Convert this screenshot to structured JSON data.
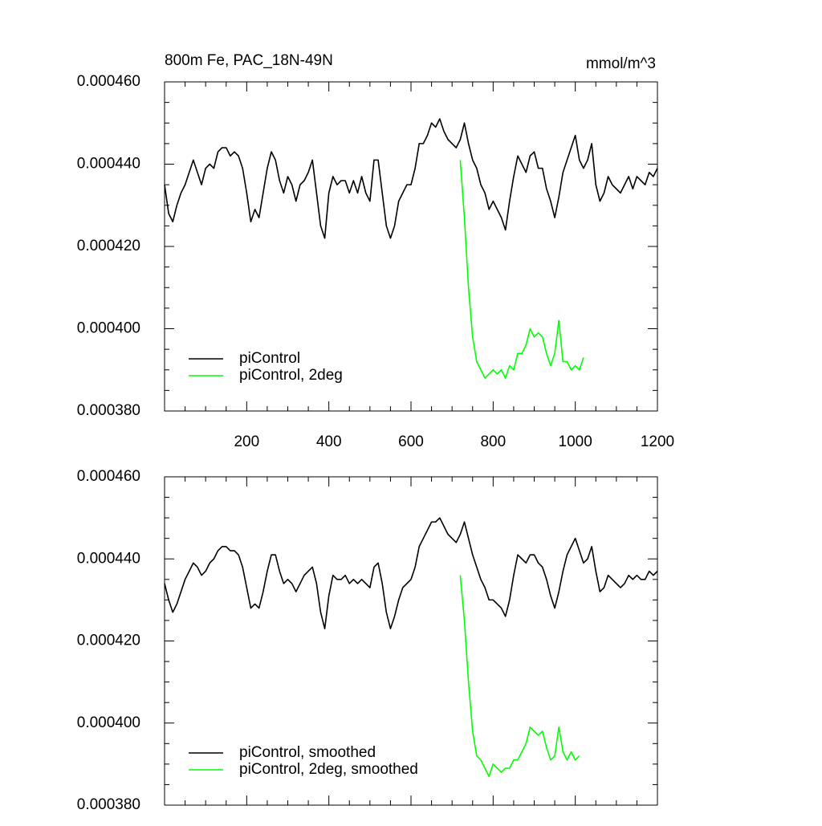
{
  "chart_data": [
    {
      "type": "line",
      "title": "800m Fe, PAC_18N-49N",
      "units": "mmol/m^3",
      "xlim": [
        0,
        1200
      ],
      "xticks": [
        200,
        400,
        600,
        800,
        1000,
        1200
      ],
      "xticklabels": true,
      "ylim": [
        0.00038,
        0.00046
      ],
      "yticks": [
        {
          "value": 0.00038,
          "label": "0.000380"
        },
        {
          "value": 0.0004,
          "label": "0.000400"
        },
        {
          "value": 0.00042,
          "label": "0.000420"
        },
        {
          "value": 0.00044,
          "label": "0.000440"
        },
        {
          "value": 0.00046,
          "label": "0.000460"
        }
      ],
      "minor_per_major": 4,
      "legend": "lower-left",
      "series": [
        {
          "name": "piControl",
          "color": "#000000",
          "x": [
            0,
            10,
            20,
            30,
            40,
            50,
            60,
            70,
            80,
            90,
            100,
            110,
            120,
            130,
            140,
            150,
            160,
            170,
            180,
            190,
            200,
            210,
            220,
            230,
            240,
            250,
            260,
            270,
            280,
            290,
            300,
            310,
            320,
            330,
            340,
            350,
            360,
            370,
            380,
            390,
            400,
            410,
            420,
            430,
            440,
            450,
            460,
            470,
            480,
            490,
            500,
            510,
            520,
            530,
            540,
            550,
            560,
            570,
            580,
            590,
            600,
            610,
            620,
            630,
            640,
            650,
            660,
            670,
            680,
            690,
            700,
            710,
            720,
            730,
            740,
            750,
            760,
            770,
            780,
            790,
            800,
            810,
            820,
            830,
            840,
            850,
            860,
            870,
            880,
            890,
            900,
            910,
            920,
            930,
            940,
            950,
            960,
            970,
            980,
            990,
            1000,
            1010,
            1020,
            1030,
            1040,
            1050,
            1060,
            1070,
            1080,
            1090,
            1100,
            1110,
            1120,
            1130,
            1140,
            1150,
            1160,
            1170,
            1180,
            1190,
            1200
          ],
          "values": [
            0.000435,
            0.000428,
            0.000426,
            0.00043,
            0.000433,
            0.000435,
            0.000438,
            0.000441,
            0.000438,
            0.000435,
            0.000439,
            0.00044,
            0.000439,
            0.000443,
            0.000444,
            0.000444,
            0.000442,
            0.000443,
            0.000442,
            0.000439,
            0.000433,
            0.000426,
            0.000429,
            0.000427,
            0.000433,
            0.000439,
            0.000443,
            0.000441,
            0.000436,
            0.000433,
            0.000437,
            0.000435,
            0.000431,
            0.000435,
            0.000436,
            0.000438,
            0.000441,
            0.000433,
            0.000425,
            0.000422,
            0.000433,
            0.000437,
            0.000435,
            0.000436,
            0.000436,
            0.000433,
            0.000436,
            0.000433,
            0.000437,
            0.000433,
            0.000431,
            0.000441,
            0.000441,
            0.000433,
            0.000425,
            0.000422,
            0.000425,
            0.000431,
            0.000433,
            0.000435,
            0.000435,
            0.000439,
            0.000445,
            0.000445,
            0.000447,
            0.00045,
            0.000449,
            0.000451,
            0.000448,
            0.000446,
            0.000445,
            0.000444,
            0.000446,
            0.00045,
            0.000445,
            0.000441,
            0.000439,
            0.000435,
            0.000433,
            0.000429,
            0.000431,
            0.000429,
            0.000427,
            0.000424,
            0.000431,
            0.000437,
            0.000442,
            0.00044,
            0.000438,
            0.000442,
            0.000443,
            0.000439,
            0.000439,
            0.000434,
            0.000431,
            0.000427,
            0.000432,
            0.000438,
            0.000441,
            0.000444,
            0.000447,
            0.000441,
            0.000439,
            0.000441,
            0.000445,
            0.000435,
            0.000431,
            0.000433,
            0.000437,
            0.000435,
            0.000434,
            0.000433,
            0.000435,
            0.000437,
            0.000434,
            0.000437,
            0.000436,
            0.000435,
            0.000438,
            0.000437,
            0.000439
          ]
        },
        {
          "name": "piControl, 2deg",
          "color": "#00ff00",
          "x": [
            720,
            730,
            740,
            750,
            760,
            770,
            780,
            790,
            800,
            810,
            820,
            830,
            840,
            850,
            860,
            870,
            880,
            890,
            900,
            910,
            920,
            930,
            940,
            950,
            960,
            970,
            980,
            990,
            1000,
            1010,
            1020
          ],
          "values": [
            0.000441,
            0.000427,
            0.00041,
            0.000398,
            0.000392,
            0.00039,
            0.000388,
            0.000389,
            0.00039,
            0.000389,
            0.00039,
            0.000388,
            0.000391,
            0.00039,
            0.000394,
            0.000394,
            0.000396,
            0.0004,
            0.000398,
            0.000399,
            0.000398,
            0.000394,
            0.000391,
            0.000394,
            0.000402,
            0.000392,
            0.000392,
            0.00039,
            0.000391,
            0.00039,
            0.000393
          ]
        }
      ]
    },
    {
      "type": "line",
      "xlim": [
        0,
        1200
      ],
      "xticks": [
        200,
        400,
        600,
        800,
        1000,
        1200
      ],
      "xticklabels": false,
      "ylim": [
        0.00038,
        0.00046
      ],
      "yticks": [
        {
          "value": 0.00038,
          "label": "0.000380"
        },
        {
          "value": 0.0004,
          "label": "0.000400"
        },
        {
          "value": 0.00042,
          "label": "0.000420"
        },
        {
          "value": 0.00044,
          "label": "0.000440"
        },
        {
          "value": 0.00046,
          "label": "0.000460"
        }
      ],
      "minor_per_major": 4,
      "legend": "lower-left",
      "series": [
        {
          "name": "piControl, smoothed",
          "color": "#000000",
          "x": [
            0,
            10,
            20,
            30,
            40,
            50,
            60,
            70,
            80,
            90,
            100,
            110,
            120,
            130,
            140,
            150,
            160,
            170,
            180,
            190,
            200,
            210,
            220,
            230,
            240,
            250,
            260,
            270,
            280,
            290,
            300,
            310,
            320,
            330,
            340,
            350,
            360,
            370,
            380,
            390,
            400,
            410,
            420,
            430,
            440,
            450,
            460,
            470,
            480,
            490,
            500,
            510,
            520,
            530,
            540,
            550,
            560,
            570,
            580,
            590,
            600,
            610,
            620,
            630,
            640,
            650,
            660,
            670,
            680,
            690,
            700,
            710,
            720,
            730,
            740,
            750,
            760,
            770,
            780,
            790,
            800,
            810,
            820,
            830,
            840,
            850,
            860,
            870,
            880,
            890,
            900,
            910,
            920,
            930,
            940,
            950,
            960,
            970,
            980,
            990,
            1000,
            1010,
            1020,
            1030,
            1040,
            1050,
            1060,
            1070,
            1080,
            1090,
            1100,
            1110,
            1120,
            1130,
            1140,
            1150,
            1160,
            1170,
            1180,
            1190,
            1200
          ],
          "values": [
            0.000434,
            0.00043,
            0.000427,
            0.000429,
            0.000432,
            0.000435,
            0.000437,
            0.000439,
            0.000438,
            0.000436,
            0.000437,
            0.000439,
            0.00044,
            0.000442,
            0.000443,
            0.000443,
            0.000442,
            0.000442,
            0.000441,
            0.000438,
            0.000433,
            0.000428,
            0.000429,
            0.000428,
            0.000432,
            0.000437,
            0.000441,
            0.000441,
            0.000437,
            0.000434,
            0.000435,
            0.000434,
            0.000432,
            0.000434,
            0.000436,
            0.000437,
            0.000438,
            0.000434,
            0.000427,
            0.000423,
            0.000431,
            0.000436,
            0.000435,
            0.000435,
            0.000436,
            0.000434,
            0.000435,
            0.000434,
            0.000435,
            0.000434,
            0.000433,
            0.000438,
            0.000439,
            0.000434,
            0.000427,
            0.000423,
            0.000426,
            0.00043,
            0.000433,
            0.000434,
            0.000435,
            0.000438,
            0.000443,
            0.000445,
            0.000447,
            0.000449,
            0.000449,
            0.00045,
            0.000448,
            0.000446,
            0.000445,
            0.000444,
            0.000446,
            0.000449,
            0.000445,
            0.000441,
            0.000438,
            0.000435,
            0.000433,
            0.00043,
            0.00043,
            0.000429,
            0.000428,
            0.000426,
            0.00043,
            0.000436,
            0.000441,
            0.00044,
            0.000439,
            0.000441,
            0.000441,
            0.000439,
            0.000438,
            0.000435,
            0.000431,
            0.000428,
            0.000432,
            0.000437,
            0.000441,
            0.000443,
            0.000445,
            0.000442,
            0.000439,
            0.00044,
            0.000443,
            0.000437,
            0.000432,
            0.000433,
            0.000436,
            0.000435,
            0.000434,
            0.000433,
            0.000434,
            0.000436,
            0.000435,
            0.000436,
            0.000435,
            0.000435,
            0.000437,
            0.000436,
            0.000437
          ]
        },
        {
          "name": "piControl, 2deg, smoothed",
          "color": "#00ff00",
          "x": [
            720,
            730,
            740,
            750,
            760,
            770,
            780,
            790,
            800,
            810,
            820,
            830,
            840,
            850,
            860,
            870,
            880,
            890,
            900,
            910,
            920,
            930,
            940,
            950,
            960,
            970,
            980,
            990,
            1000,
            1010
          ],
          "values": [
            0.000436,
            0.000425,
            0.00041,
            0.000398,
            0.000392,
            0.000391,
            0.000389,
            0.000387,
            0.00039,
            0.000389,
            0.000388,
            0.000389,
            0.000389,
            0.000391,
            0.000391,
            0.000393,
            0.000395,
            0.000399,
            0.000398,
            0.000397,
            0.000398,
            0.000394,
            0.000391,
            0.000392,
            0.000399,
            0.000393,
            0.000391,
            0.000393,
            0.000391,
            0.000392
          ]
        }
      ]
    }
  ]
}
